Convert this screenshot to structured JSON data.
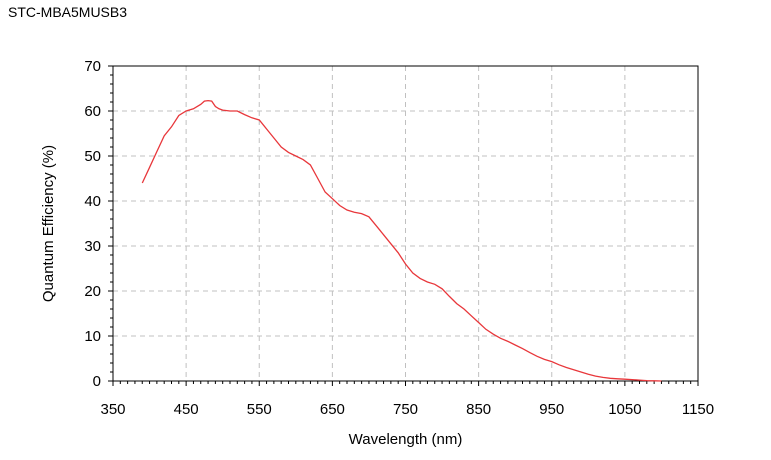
{
  "header": {
    "title": "STC-MBA5MUSB3"
  },
  "chart_data": {
    "type": "line",
    "title": "",
    "xlabel": "Wavelength (nm)",
    "ylabel": "Quantum Efficiency (%)",
    "xlim": [
      350,
      1150
    ],
    "ylim": [
      0,
      70
    ],
    "x_ticks": [
      350,
      450,
      550,
      650,
      750,
      850,
      950,
      1050,
      1150
    ],
    "y_ticks": [
      0,
      10,
      20,
      30,
      40,
      50,
      60,
      70
    ],
    "grid": true,
    "legend": "none",
    "series": [
      {
        "color": "#e8373b",
        "x": [
          390,
          400,
          410,
          420,
          430,
          440,
          450,
          460,
          470,
          475,
          480,
          485,
          490,
          495,
          500,
          510,
          520,
          530,
          540,
          550,
          560,
          570,
          580,
          590,
          600,
          610,
          620,
          630,
          640,
          650,
          660,
          670,
          680,
          690,
          700,
          710,
          720,
          730,
          740,
          750,
          760,
          770,
          780,
          790,
          800,
          810,
          820,
          830,
          840,
          850,
          860,
          870,
          880,
          890,
          900,
          910,
          920,
          930,
          940,
          950,
          960,
          970,
          980,
          990,
          1000,
          1010,
          1020,
          1030,
          1040,
          1050,
          1060,
          1070,
          1080,
          1090,
          1100
        ],
        "y": [
          44,
          47.5,
          51,
          54.5,
          56.5,
          59,
          60,
          60.5,
          61.5,
          62.2,
          62.3,
          62.2,
          61,
          60.5,
          60.2,
          60,
          60,
          59.2,
          58.5,
          58,
          56,
          54,
          52,
          50.8,
          50,
          49.2,
          48,
          45,
          42,
          40.5,
          39,
          38,
          37.5,
          37.2,
          36.5,
          34.5,
          32.5,
          30.5,
          28.5,
          26,
          24,
          22.8,
          22,
          21.5,
          20.5,
          18.8,
          17.2,
          16,
          14.5,
          13,
          11.5,
          10.4,
          9.5,
          8.8,
          8,
          7.2,
          6.3,
          5.5,
          4.8,
          4.3,
          3.6,
          3,
          2.5,
          2,
          1.5,
          1.1,
          0.8,
          0.6,
          0.5,
          0.4,
          0.3,
          0.2,
          0.1,
          0.05,
          0
        ]
      }
    ]
  }
}
